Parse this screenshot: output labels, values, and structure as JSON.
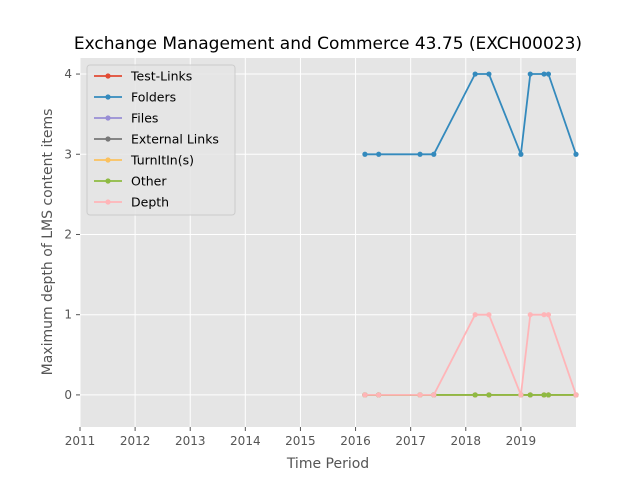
{
  "chart_data": {
    "type": "line",
    "title": "Exchange Management and Commerce 43.75 (EXCH00023)",
    "xlabel": "Time Period",
    "ylabel": "Maximum depth of LMS content items",
    "xlim": [
      2011,
      2020
    ],
    "ylim": [
      -0.4,
      4.2
    ],
    "x_ticks": [
      "2011",
      "2012",
      "2013",
      "2014",
      "2015",
      "2016",
      "2017",
      "2018",
      "2019"
    ],
    "y_ticks": [
      "0",
      "1",
      "2",
      "3",
      "4"
    ],
    "grid": true,
    "legend_position": "upper-left",
    "x": [
      2016.17,
      2016.42,
      2017.17,
      2017.42,
      2018.17,
      2018.42,
      2019.0,
      2019.17,
      2019.42,
      2019.5,
      2020.0
    ],
    "series": [
      {
        "name": "Test-Links",
        "color": "#e24a33",
        "values": [
          0,
          0,
          0,
          0,
          0,
          0,
          0,
          0,
          0,
          0,
          0
        ]
      },
      {
        "name": "Folders",
        "color": "#348abd",
        "values": [
          3,
          3,
          3,
          3,
          4,
          4,
          3,
          4,
          4,
          4,
          3
        ]
      },
      {
        "name": "Files",
        "color": "#988ed5",
        "values": [
          0,
          0,
          0,
          0,
          0,
          0,
          0,
          0,
          0,
          0,
          0
        ]
      },
      {
        "name": "External Links",
        "color": "#777777",
        "values": [
          0,
          0,
          0,
          0,
          0,
          0,
          0,
          0,
          0,
          0,
          0
        ]
      },
      {
        "name": "TurnItIn(s)",
        "color": "#fbc15e",
        "values": [
          0,
          0,
          0,
          0,
          0,
          0,
          0,
          0,
          0,
          0,
          0
        ]
      },
      {
        "name": "Other",
        "color": "#8eba42",
        "values": [
          0,
          0,
          0,
          0,
          0,
          0,
          0,
          0,
          0,
          0,
          0
        ]
      },
      {
        "name": "Depth",
        "color": "#ffb5b8",
        "values": [
          0,
          0,
          0,
          0,
          1,
          1,
          0,
          1,
          1,
          1,
          0
        ]
      }
    ]
  }
}
